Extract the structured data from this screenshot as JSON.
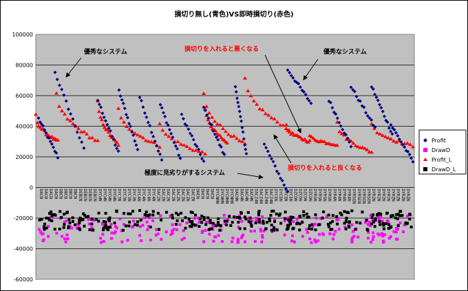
{
  "chart_data": {
    "type": "scatter",
    "title": "損切り無し(青色)VS即時損切り(赤色)",
    "xlabel": "",
    "ylabel": "",
    "ylim": [
      -60000,
      100000
    ],
    "y_ticks": [
      "100000",
      "80000",
      "60000",
      "40000",
      "20000",
      "0",
      "-20000",
      "-40000",
      "-60000"
    ],
    "grid": true,
    "legend_placement": "right",
    "background_color": "#c0c0c0",
    "series": [
      {
        "name": "Profit",
        "marker": "diamond",
        "color": "#000080"
      },
      {
        "name": "DrawD",
        "marker": "square",
        "color": "#ff00ff"
      },
      {
        "name": "Profit_L",
        "marker": "triangle",
        "color": "#ff0000"
      },
      {
        "name": "DrawD_L",
        "marker": "square",
        "color": "#000000"
      }
    ],
    "categories": [
      "DACN",
      "DBCN",
      "DEBCN",
      "DYCHN",
      "DYC3N",
      "DYC4N",
      "DAC2N",
      "DACZN",
      "DHCN",
      "DYCNHN",
      "DACHN",
      "DACZ4N",
      "DYCEN",
      "DZCDN",
      "DYRSN",
      "DYR4N",
      "DYRSEN",
      "DYR2N",
      "DYRZN"
    ],
    "annotations": [
      {
        "text": "優秀なシステム",
        "color": "#000000"
      },
      {
        "text": "損切りを入れると悪くなる",
        "color": "#ff0000"
      },
      {
        "text": "優秀なシステム",
        "color": "#000000"
      },
      {
        "text": "極度に見劣りがするシステム",
        "color": "#000000"
      },
      {
        "text": "損切りを入れると良くなる",
        "color": "#ff0000"
      }
    ],
    "blue_groups": [
      [
        45000,
        20000
      ],
      [
        75000,
        25000
      ],
      [
        57000,
        23000
      ],
      [
        63000,
        25000
      ],
      [
        59000,
        18000
      ],
      [
        54000,
        19000
      ],
      [
        47000,
        17000
      ],
      [
        52000,
        21000
      ],
      [
        66000,
        22000
      ],
      [
        28000,
        -3000
      ],
      [
        77000,
        55000
      ],
      [
        57000,
        27000
      ],
      [
        66000,
        39000
      ],
      [
        66000,
        35000
      ],
      [
        41000,
        17000
      ]
    ],
    "red_groups": [
      [
        47000,
        30000
      ],
      [
        61000,
        30000
      ],
      [
        56000,
        28000
      ],
      [
        51000,
        27000
      ],
      [
        42000,
        22000
      ],
      [
        52000,
        29000
      ],
      [
        61000,
        28000
      ],
      [
        71000,
        38000
      ],
      [
        40000,
        30000
      ],
      [
        34000,
        28000
      ],
      [
        42000,
        23000
      ],
      [
        42000,
        27000
      ]
    ],
    "drawd_range": [
      -36000,
      -18000
    ],
    "drawd_l_range": [
      -28000,
      -15000
    ]
  }
}
